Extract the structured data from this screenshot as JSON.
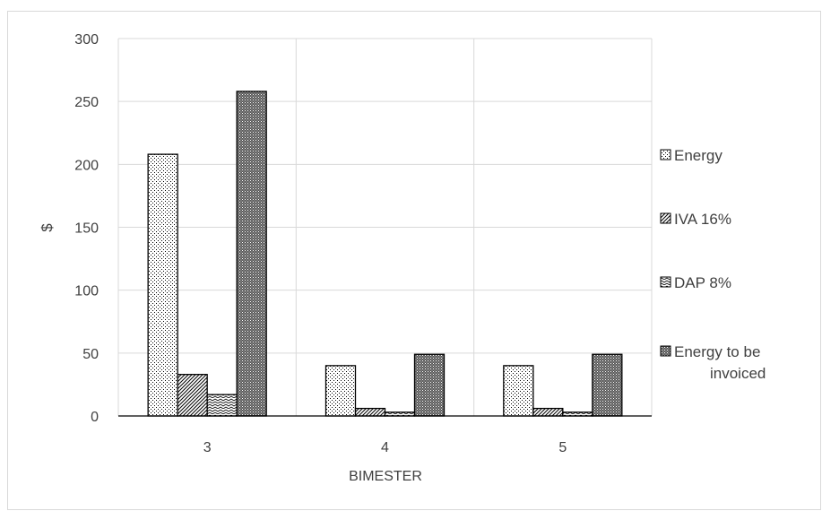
{
  "chart_data": {
    "type": "bar",
    "title": "",
    "xlabel": "BIMESTER",
    "ylabel": "$",
    "ylim": [
      0,
      300
    ],
    "yticks": [
      0,
      50,
      100,
      150,
      200,
      250,
      300
    ],
    "grid": true,
    "legend_position": "right",
    "categories": [
      "3",
      "4",
      "5"
    ],
    "series": [
      {
        "name": "Energy",
        "values": [
          208,
          40,
          40
        ],
        "pattern": "dots"
      },
      {
        "name": "IVA 16%",
        "values": [
          33,
          6,
          6
        ],
        "pattern": "diagonal"
      },
      {
        "name": "DAP 8%",
        "values": [
          17,
          3,
          3
        ],
        "pattern": "zigzag"
      },
      {
        "name": "Energy to be invoiced",
        "values": [
          258,
          49,
          49
        ],
        "pattern": "dense"
      }
    ],
    "legend_lines": [
      [
        "Energy"
      ],
      [
        "IVA 16%"
      ],
      [
        "DAP 8%"
      ],
      [
        "Energy to be",
        "invoiced"
      ]
    ],
    "colors": {
      "bar_stroke": "#000000",
      "grid": "#d9d9d9",
      "text": "#404040"
    }
  }
}
